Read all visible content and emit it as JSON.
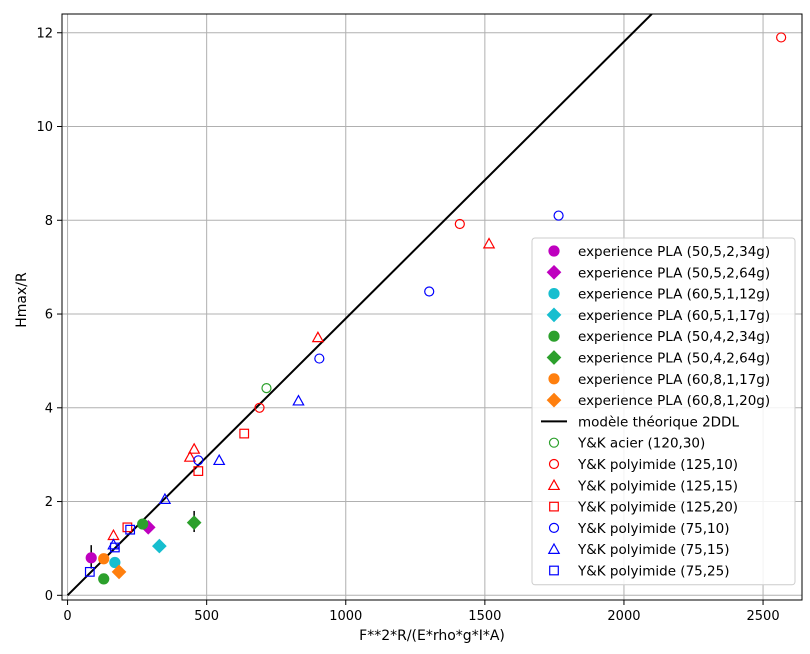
{
  "chart_data": {
    "type": "scatter",
    "title": "",
    "xlabel": "F**2*R/(E*rho*g*I*A)",
    "ylabel": "Hmax/R",
    "xlim": [
      -20,
      2640
    ],
    "ylim": [
      -0.1,
      12.4
    ],
    "xticks": [
      0,
      500,
      1000,
      1500,
      2000,
      2500
    ],
    "yticks": [
      0,
      2,
      4,
      6,
      8,
      10,
      12
    ],
    "grid": true,
    "legend_position": "lower-right",
    "series": [
      {
        "name": "experience PLA (50,5,2,34g)",
        "marker": "circle",
        "filled": true,
        "color": "#bf00bf",
        "points": [
          [
            85,
            0.8
          ]
        ],
        "errorbars": [
          [
            85,
            0.57,
            1.07
          ]
        ]
      },
      {
        "name": "experience PLA (50,5,2,64g)",
        "marker": "diamond",
        "filled": true,
        "color": "#bf00bf",
        "points": [
          [
            290,
            1.45
          ]
        ]
      },
      {
        "name": "experience PLA (60,5,1,12g)",
        "marker": "circle",
        "filled": true,
        "color": "#17becf",
        "points": [
          [
            170,
            0.7
          ]
        ]
      },
      {
        "name": "experience PLA (60,5,1,17g)",
        "marker": "diamond",
        "filled": true,
        "color": "#17becf",
        "points": [
          [
            330,
            1.05
          ]
        ]
      },
      {
        "name": "experience PLA (50,4,2,34g)",
        "marker": "circle",
        "filled": true,
        "color": "#2ca02c",
        "points": [
          [
            130,
            0.35
          ],
          [
            270,
            1.52
          ]
        ]
      },
      {
        "name": "experience PLA (50,4,2,64g)",
        "marker": "diamond",
        "filled": true,
        "color": "#2ca02c",
        "points": [
          [
            455,
            1.55
          ]
        ],
        "errorbars": [
          [
            455,
            1.35,
            1.8
          ]
        ]
      },
      {
        "name": "experience PLA (60,8,1,17g)",
        "marker": "circle",
        "filled": true,
        "color": "#ff7f0e",
        "points": [
          [
            130,
            0.78
          ]
        ]
      },
      {
        "name": "experience PLA (60,8,1,20g)",
        "marker": "diamond",
        "filled": true,
        "color": "#ff7f0e",
        "points": [
          [
            185,
            0.5
          ]
        ]
      },
      {
        "name": "modèle théorique 2DDL",
        "type": "line",
        "color": "#000000",
        "points": [
          [
            0,
            0
          ],
          [
            2100,
            12.4
          ]
        ]
      },
      {
        "name": "Y&K acier (120,30)",
        "marker": "circle",
        "filled": false,
        "color": "#2ca02c",
        "points": [
          [
            715,
            4.42
          ]
        ]
      },
      {
        "name": "Y&K polyimide (125,10)",
        "marker": "circle",
        "filled": false,
        "color": "#ff0000",
        "points": [
          [
            690,
            4.0
          ],
          [
            1410,
            7.92
          ],
          [
            2565,
            11.9
          ]
        ]
      },
      {
        "name": "Y&K polyimide (125,15)",
        "marker": "triangle",
        "filled": false,
        "color": "#ff0000",
        "points": [
          [
            165,
            1.28
          ],
          [
            440,
            2.95
          ],
          [
            455,
            3.12
          ],
          [
            900,
            5.5
          ],
          [
            1515,
            7.5
          ]
        ]
      },
      {
        "name": "Y&K polyimide (125,20)",
        "marker": "square",
        "filled": false,
        "color": "#ff0000",
        "points": [
          [
            215,
            1.45
          ],
          [
            470,
            2.65
          ],
          [
            635,
            3.45
          ]
        ]
      },
      {
        "name": "Y&K polyimide (75,10)",
        "marker": "circle",
        "filled": false,
        "color": "#0000ff",
        "points": [
          [
            470,
            2.88
          ],
          [
            905,
            5.05
          ],
          [
            1300,
            6.48
          ],
          [
            1765,
            8.1
          ]
        ]
      },
      {
        "name": "Y&K polyimide (75,15)",
        "marker": "triangle",
        "filled": false,
        "color": "#0000ff",
        "points": [
          [
            165,
            1.08
          ],
          [
            350,
            2.05
          ],
          [
            545,
            2.88
          ],
          [
            830,
            4.15
          ]
        ]
      },
      {
        "name": "Y&K polyimide (75,25)",
        "marker": "square",
        "filled": false,
        "color": "#0000ff",
        "points": [
          [
            80,
            0.5
          ],
          [
            170,
            1.02
          ],
          [
            225,
            1.4
          ]
        ]
      }
    ]
  }
}
